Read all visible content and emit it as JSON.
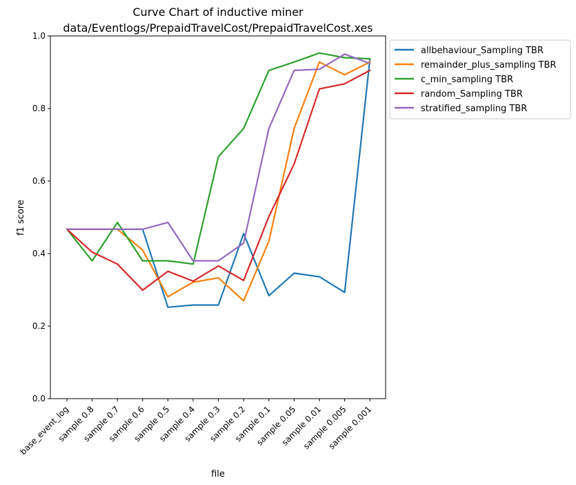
{
  "chart_data": {
    "type": "line",
    "title": [
      "Curve Chart of inductive miner",
      "data/Eventlogs/PrepaidTravelCost/PrepaidTravelCost.xes"
    ],
    "xlabel": "file",
    "ylabel": "f1 score",
    "ylim": [
      0.0,
      1.0
    ],
    "yticks": [
      0.0,
      0.2,
      0.4,
      0.6,
      0.8,
      1.0
    ],
    "ytick_labels": [
      "0.0",
      "0.2",
      "0.4",
      "0.6",
      "0.8",
      "1.0"
    ],
    "grid": false,
    "legend_position": "outside top-right",
    "categories": [
      "base_event_log",
      "sample 0.8",
      "sample 0.7",
      "sample 0.6",
      "sample 0.5",
      "sample 0.4",
      "sample 0.3",
      "sample 0.2",
      "sample 0.1",
      "sample 0.05",
      "sample 0.01",
      "sample 0.005",
      "sample 0.001"
    ],
    "series": [
      {
        "name": "allbehaviour_Sampling TBR",
        "color": "#1f77b4",
        "values": [
          0.467,
          0.467,
          0.467,
          0.467,
          0.252,
          0.258,
          0.258,
          0.455,
          0.284,
          0.346,
          0.336,
          0.293,
          0.935
        ]
      },
      {
        "name": "remainder_plus_sampling TBR",
        "color": "#ff7f0e",
        "values": [
          0.467,
          0.467,
          0.467,
          0.41,
          0.281,
          0.321,
          0.333,
          0.27,
          0.434,
          0.745,
          0.928,
          0.893,
          0.928
        ]
      },
      {
        "name": "c_min_sampling TBR",
        "color": "#2ca02c",
        "values": [
          0.467,
          0.38,
          0.486,
          0.38,
          0.38,
          0.371,
          0.667,
          0.745,
          0.905,
          0.928,
          0.953,
          0.94,
          0.937
        ]
      },
      {
        "name": "random_Sampling TBR",
        "color": "#d62728",
        "values": [
          0.467,
          0.404,
          0.371,
          0.299,
          0.351,
          0.324,
          0.366,
          0.326,
          0.502,
          0.647,
          0.854,
          0.868,
          0.905
        ]
      },
      {
        "name": "stratified_sampling TBR",
        "color": "#9467bd",
        "values": [
          0.467,
          0.467,
          0.467,
          0.467,
          0.486,
          0.38,
          0.38,
          0.429,
          0.745,
          0.905,
          0.908,
          0.95,
          0.924
        ]
      }
    ]
  }
}
